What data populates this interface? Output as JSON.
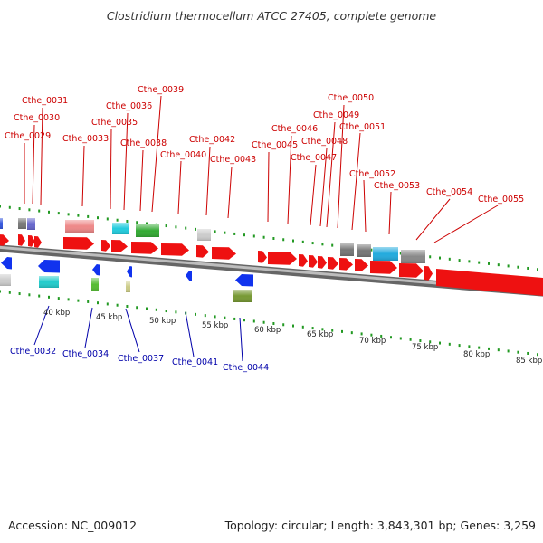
{
  "title": "Clostridium thermocellum ATCC 27405, complete genome",
  "footer": {
    "accession": "Accession: NC_009012",
    "summary": "Topology: circular; Length: 3,843,301 bp; Genes: 3,259"
  },
  "colors": {
    "forward_gene": "#ee1111",
    "reverse_gene": "#1133ee",
    "forward_label": "#cc0000",
    "reverse_label": "#0000aa",
    "backbone": "#888888",
    "ticks": "#229922"
  },
  "scale_labels": [
    "40 kbp",
    "45 kbp",
    "50 kbp",
    "55 kbp",
    "60 kbp",
    "65 kbp",
    "70 kbp",
    "75 kbp",
    "80 kbp",
    "85 kbp"
  ],
  "forward_gene_labels": [
    "Cthe_0029",
    "Cthe_0030",
    "Cthe_0031",
    "Cthe_0033",
    "Cthe_0035",
    "Cthe_0036",
    "Cthe_0038",
    "Cthe_0039",
    "Cthe_0040",
    "Cthe_0042",
    "Cthe_0043",
    "Cthe_0045",
    "Cthe_0046",
    "Cthe_0047",
    "Cthe_0048",
    "Cthe_0049",
    "Cthe_0050",
    "Cthe_0051",
    "Cthe_0052",
    "Cthe_0053",
    "Cthe_0054",
    "Cthe_0055"
  ],
  "reverse_gene_labels": [
    "Cthe_0032",
    "Cthe_0034",
    "Cthe_0037",
    "Cthe_0041",
    "Cthe_0044"
  ]
}
